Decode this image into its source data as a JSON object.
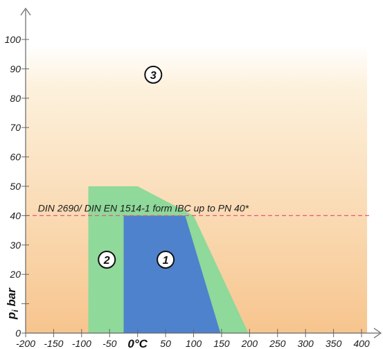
{
  "chart_data": {
    "type": "area",
    "title": "",
    "ylabel": "p",
    "ylabel_sub": "i",
    "ylabel_unit": "bar",
    "xlabel_zero": "0°C",
    "xlim": [
      -200,
      400
    ],
    "ylim": [
      0,
      100
    ],
    "x_ticks": [
      -200,
      -150,
      -100,
      -50,
      0,
      50,
      100,
      150,
      200,
      250,
      300,
      350,
      400
    ],
    "x_tick_labels": [
      "-200",
      "-150",
      "-100",
      "-50",
      "",
      "50",
      "100",
      "150",
      "200",
      "250",
      "300",
      "350",
      "400"
    ],
    "y_ticks": [
      0,
      10,
      20,
      30,
      40,
      50,
      60,
      70,
      80,
      90,
      100
    ],
    "y_tick_labels": [
      "0",
      "",
      "20",
      "30",
      "40",
      "50",
      "60",
      "70",
      "80",
      "90",
      "100"
    ],
    "regions": [
      {
        "label": "3",
        "color": "#f7c58e",
        "label_pos": [
          28,
          88
        ]
      },
      {
        "label": "2",
        "color": "#8fd99a",
        "polygon": [
          [
            -88,
            0
          ],
          [
            -88,
            50
          ],
          [
            0,
            50
          ],
          [
            100,
            40
          ],
          [
            198,
            0
          ]
        ],
        "label_pos": [
          -55,
          25
        ]
      },
      {
        "label": "1",
        "color": "#4f82cc",
        "polygon": [
          [
            -25,
            0
          ],
          [
            -25,
            40
          ],
          [
            85,
            40
          ],
          [
            148,
            0
          ]
        ],
        "label_pos": [
          50,
          25
        ]
      }
    ],
    "reference_line": {
      "y": 40,
      "label": "DIN 2690/ DIN EN 1514-1 form IBC up to PN 40*",
      "color": "#e05a7a"
    },
    "grid": false
  }
}
